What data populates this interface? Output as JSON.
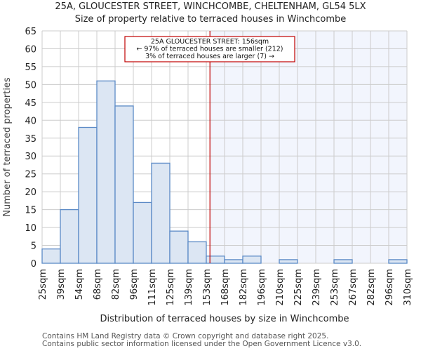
{
  "header": {
    "title": "25A, GLOUCESTER STREET, WINCHCOMBE, CHELTENHAM, GL54 5LX",
    "subtitle": "Size of property relative to terraced houses in Winchcombe"
  },
  "annotation": {
    "line1": "25A GLOUCESTER STREET: 156sqm",
    "line2": "← 97% of terraced houses are smaller (212)",
    "line3": "3% of terraced houses are larger (7) →",
    "marker_value": 156
  },
  "footer": {
    "line1": "Contains HM Land Registry data © Crown copyright and database right 2025.",
    "line2": "Contains public sector information licensed under the Open Government Licence v3.0."
  },
  "colors": {
    "bar_fill": "#dce6f3",
    "bar_stroke": "#5b8ac6",
    "marker": "#c00000",
    "highlight_bg": "#f2f5fd",
    "grid": "#cccccc"
  },
  "chart_data": {
    "type": "bar",
    "title": "25A, GLOUCESTER STREET, WINCHCOMBE, CHELTENHAM, GL54 5LX",
    "subtitle": "Size of property relative to terraced houses in Winchcombe",
    "xlabel": "Distribution of terraced houses by size in Winchcombe",
    "ylabel": "Number of terraced properties",
    "categories": [
      "25sqm",
      "39sqm",
      "54sqm",
      "68sqm",
      "82sqm",
      "96sqm",
      "111sqm",
      "125sqm",
      "139sqm",
      "153sqm",
      "168sqm",
      "182sqm",
      "196sqm",
      "210sqm",
      "225sqm",
      "239sqm",
      "253sqm",
      "267sqm",
      "282sqm",
      "296sqm",
      "310sqm"
    ],
    "values": [
      4,
      15,
      38,
      51,
      44,
      17,
      28,
      9,
      6,
      2,
      1,
      2,
      0,
      1,
      0,
      0,
      1,
      0,
      0,
      1
    ],
    "yticks": [
      0,
      5,
      10,
      15,
      20,
      25,
      30,
      35,
      40,
      45,
      50,
      55,
      60,
      65
    ],
    "ylim": [
      0,
      65
    ],
    "grid": true,
    "marker_line": {
      "x": 156,
      "label": "25A GLOUCESTER STREET: 156sqm"
    }
  }
}
